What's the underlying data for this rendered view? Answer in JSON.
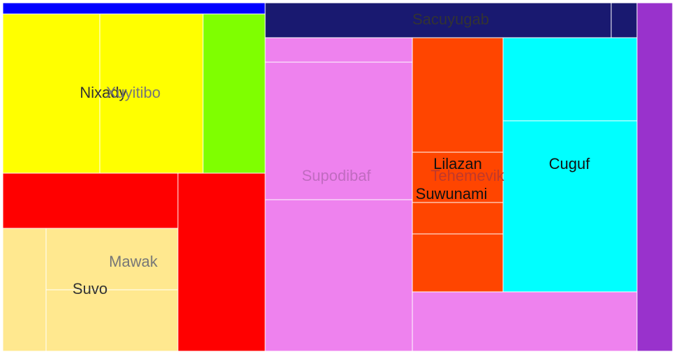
{
  "chart_data": {
    "type": "treemap",
    "title": "",
    "items": [
      {
        "name": "",
        "color": "#0000ff"
      },
      {
        "name": "Nixady",
        "color": "#ffff00"
      },
      {
        "name": "Xuyitibo",
        "color": "#ffff00"
      },
      {
        "name": "",
        "color": "#7fff00"
      },
      {
        "name": "",
        "color": "#ff0000"
      },
      {
        "name": "",
        "color": "#ff0000"
      },
      {
        "name": "",
        "color": "#ffe88f"
      },
      {
        "name": "Mawak",
        "color": "#ffe88f"
      },
      {
        "name": "Suvo",
        "color": "#ffe88f"
      },
      {
        "name": "Sacuyugab",
        "color": "#191970"
      },
      {
        "name": "",
        "color": "#191970"
      },
      {
        "name": "",
        "color": "#ee82ee"
      },
      {
        "name": "Supodibaf",
        "color": "#ee82ee"
      },
      {
        "name": "",
        "color": "#ee82ee"
      },
      {
        "name": "Lilazan",
        "color": "#ff4500"
      },
      {
        "name": "Tehemevik",
        "color": "#ff4500"
      },
      {
        "name": "Suwunami",
        "color": "#ff4500"
      },
      {
        "name": "",
        "color": "#ff4500"
      },
      {
        "name": "",
        "color": "#00ffff"
      },
      {
        "name": "Cuguf",
        "color": "#00ffff"
      },
      {
        "name": "",
        "color": "#ee82ee"
      },
      {
        "name": "",
        "color": "#9932cc"
      }
    ]
  }
}
